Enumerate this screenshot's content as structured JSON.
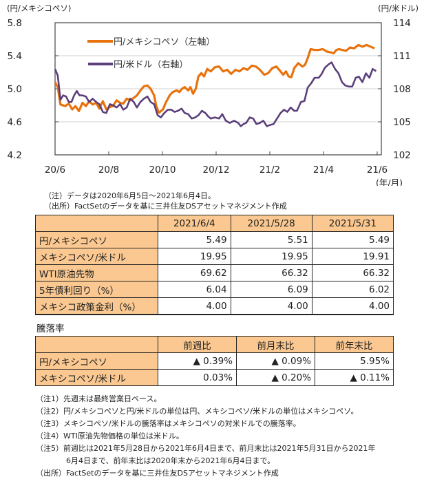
{
  "chart_data": {
    "type": "line",
    "left_unit_label": "(円/メキシコペソ)",
    "right_unit_label": "(円/米ドル)",
    "x_unit_label": "(年/月)",
    "left_ylim": [
      4.2,
      5.8
    ],
    "left_yticks": [
      "5.8",
      "5.4",
      "5.0",
      "4.6",
      "4.2"
    ],
    "right_ylim": [
      102,
      114
    ],
    "right_yticks": [
      "114",
      "111",
      "108",
      "105",
      "102"
    ],
    "x_range_months": [
      0,
      12
    ],
    "x_ticks": [
      {
        "label": "20/6",
        "m": 0
      },
      {
        "label": "20/8",
        "m": 2
      },
      {
        "label": "20/10",
        "m": 4
      },
      {
        "label": "20/12",
        "m": 6
      },
      {
        "label": "21/2",
        "m": 8
      },
      {
        "label": "21/4",
        "m": 10
      },
      {
        "label": "21/6",
        "m": 12
      }
    ],
    "grid": "horizontal",
    "legend_position": "top-left",
    "series": [
      {
        "name": "円/メキシコペソ（左軸）",
        "axis": "left",
        "color": "#e8720c",
        "points": [
          [
            0,
            5.08
          ],
          [
            0.1,
            5.02
          ],
          [
            0.2,
            4.81
          ],
          [
            0.38,
            4.79
          ],
          [
            0.51,
            4.82
          ],
          [
            0.64,
            4.75
          ],
          [
            0.76,
            4.79
          ],
          [
            0.89,
            4.73
          ],
          [
            1.02,
            4.83
          ],
          [
            1.15,
            4.79
          ],
          [
            1.27,
            4.85
          ],
          [
            1.4,
            4.81
          ],
          [
            1.53,
            4.83
          ],
          [
            1.65,
            4.76
          ],
          [
            1.78,
            4.85
          ],
          [
            1.91,
            4.75
          ],
          [
            2.04,
            4.78
          ],
          [
            2.16,
            4.79
          ],
          [
            2.29,
            4.86
          ],
          [
            2.42,
            4.83
          ],
          [
            2.54,
            4.82
          ],
          [
            2.67,
            4.88
          ],
          [
            2.8,
            4.86
          ],
          [
            2.93,
            4.89
          ],
          [
            3.05,
            4.92
          ],
          [
            3.18,
            4.98
          ],
          [
            3.31,
            5.03
          ],
          [
            3.44,
            5.04
          ],
          [
            3.56,
            5.0
          ],
          [
            3.69,
            4.92
          ],
          [
            3.77,
            4.79
          ],
          [
            3.87,
            4.71
          ],
          [
            4.02,
            4.75
          ],
          [
            4.12,
            4.83
          ],
          [
            4.27,
            4.92
          ],
          [
            4.38,
            4.96
          ],
          [
            4.53,
            4.98
          ],
          [
            4.63,
            4.96
          ],
          [
            4.73,
            5.0
          ],
          [
            4.83,
            5.02
          ],
          [
            4.96,
            4.98
          ],
          [
            5.04,
            5.02
          ],
          [
            5.14,
            4.94
          ],
          [
            5.24,
            5.0
          ],
          [
            5.34,
            5.15
          ],
          [
            5.45,
            5.19
          ],
          [
            5.55,
            5.15
          ],
          [
            5.67,
            5.24
          ],
          [
            5.8,
            5.21
          ],
          [
            5.95,
            5.26
          ],
          [
            6.11,
            5.27
          ],
          [
            6.26,
            5.21
          ],
          [
            6.41,
            5.23
          ],
          [
            6.56,
            5.18
          ],
          [
            6.72,
            5.23
          ],
          [
            6.87,
            5.21
          ],
          [
            7.02,
            5.25
          ],
          [
            7.17,
            5.23
          ],
          [
            7.33,
            5.28
          ],
          [
            7.48,
            5.27
          ],
          [
            7.63,
            5.23
          ],
          [
            7.79,
            5.17
          ],
          [
            7.94,
            5.19
          ],
          [
            8.09,
            5.25
          ],
          [
            8.24,
            5.27
          ],
          [
            8.4,
            5.21
          ],
          [
            8.5,
            5.17
          ],
          [
            8.6,
            5.21
          ],
          [
            8.7,
            5.15
          ],
          [
            8.8,
            5.14
          ],
          [
            8.91,
            5.25
          ],
          [
            9.06,
            5.31
          ],
          [
            9.21,
            5.27
          ],
          [
            9.31,
            5.29
          ],
          [
            9.41,
            5.37
          ],
          [
            9.52,
            5.48
          ],
          [
            9.67,
            5.47
          ],
          [
            9.82,
            5.47
          ],
          [
            9.97,
            5.48
          ],
          [
            10.13,
            5.45
          ],
          [
            10.28,
            5.44
          ],
          [
            10.38,
            5.43
          ],
          [
            10.48,
            5.47
          ],
          [
            10.58,
            5.48
          ],
          [
            10.69,
            5.47
          ],
          [
            10.84,
            5.46
          ],
          [
            10.99,
            5.5
          ],
          [
            11.14,
            5.49
          ],
          [
            11.3,
            5.53
          ],
          [
            11.45,
            5.51
          ],
          [
            11.6,
            5.53
          ],
          [
            11.75,
            5.51
          ],
          [
            11.9,
            5.49
          ]
        ]
      },
      {
        "name": "円/米ドル（右軸）",
        "axis": "right",
        "color": "#5b3f7a",
        "points": [
          [
            0,
            109.8
          ],
          [
            0.1,
            109.2
          ],
          [
            0.2,
            107.0
          ],
          [
            0.3,
            107.4
          ],
          [
            0.41,
            107.3
          ],
          [
            0.51,
            106.8
          ],
          [
            0.61,
            106.8
          ],
          [
            0.71,
            107.4
          ],
          [
            0.81,
            107.8
          ],
          [
            0.91,
            107.4
          ],
          [
            1.02,
            107.4
          ],
          [
            1.15,
            107.3
          ],
          [
            1.27,
            106.8
          ],
          [
            1.4,
            107.1
          ],
          [
            1.53,
            106.8
          ],
          [
            1.65,
            106.6
          ],
          [
            1.78,
            105.9
          ],
          [
            1.91,
            105.8
          ],
          [
            2.04,
            106.6
          ],
          [
            2.16,
            106.5
          ],
          [
            2.29,
            106.3
          ],
          [
            2.42,
            106.6
          ],
          [
            2.54,
            106.1
          ],
          [
            2.67,
            106.3
          ],
          [
            2.8,
            107.1
          ],
          [
            2.93,
            106.8
          ],
          [
            3.05,
            106.3
          ],
          [
            3.18,
            106.8
          ],
          [
            3.31,
            107.1
          ],
          [
            3.44,
            107.3
          ],
          [
            3.56,
            106.8
          ],
          [
            3.69,
            106.6
          ],
          [
            3.82,
            105.6
          ],
          [
            3.94,
            105.4
          ],
          [
            4.07,
            105.8
          ],
          [
            4.2,
            106.1
          ],
          [
            4.33,
            106.1
          ],
          [
            4.45,
            105.9
          ],
          [
            4.58,
            106.0
          ],
          [
            4.71,
            106.2
          ],
          [
            4.83,
            105.8
          ],
          [
            4.96,
            105.7
          ],
          [
            5.09,
            105.3
          ],
          [
            5.22,
            105.4
          ],
          [
            5.34,
            105.6
          ],
          [
            5.47,
            106.0
          ],
          [
            5.6,
            105.8
          ],
          [
            5.7,
            105.5
          ],
          [
            5.8,
            105.3
          ],
          [
            5.95,
            105.4
          ],
          [
            6.11,
            105.3
          ],
          [
            6.23,
            105.7
          ],
          [
            6.36,
            105.1
          ],
          [
            6.51,
            104.9
          ],
          [
            6.67,
            105.1
          ],
          [
            6.82,
            104.9
          ],
          [
            6.92,
            104.6
          ],
          [
            7.02,
            104.8
          ],
          [
            7.12,
            104.9
          ],
          [
            7.25,
            105.4
          ],
          [
            7.38,
            105.3
          ],
          [
            7.5,
            104.8
          ],
          [
            7.63,
            104.9
          ],
          [
            7.76,
            105.1
          ],
          [
            7.89,
            104.6
          ],
          [
            7.99,
            104.7
          ],
          [
            8.14,
            104.8
          ],
          [
            8.27,
            105.3
          ],
          [
            8.4,
            105.8
          ],
          [
            8.53,
            106.1
          ],
          [
            8.65,
            105.9
          ],
          [
            8.78,
            106.3
          ],
          [
            8.91,
            106.0
          ],
          [
            9.01,
            106.0
          ],
          [
            9.16,
            106.8
          ],
          [
            9.29,
            106.9
          ],
          [
            9.41,
            108.1
          ],
          [
            9.54,
            108.5
          ],
          [
            9.67,
            109.0
          ],
          [
            9.82,
            109.0
          ],
          [
            9.92,
            109.3
          ],
          [
            10.05,
            109.9
          ],
          [
            10.18,
            110.2
          ],
          [
            10.3,
            110.4
          ],
          [
            10.43,
            109.8
          ],
          [
            10.56,
            109.4
          ],
          [
            10.69,
            108.6
          ],
          [
            10.81,
            108.3
          ],
          [
            10.94,
            108.2
          ],
          [
            11.07,
            108.2
          ],
          [
            11.2,
            109.0
          ],
          [
            11.32,
            109.1
          ],
          [
            11.45,
            108.6
          ],
          [
            11.58,
            109.4
          ],
          [
            11.71,
            109.0
          ],
          [
            11.83,
            109.8
          ],
          [
            11.96,
            109.6
          ]
        ]
      }
    ]
  },
  "chart_notes": {
    "note": "（注）データは2020年6月5日～2021年6月4日。",
    "source": "（出所）FactSetのデータを基に三井住友DSアセットマネジメント作成"
  },
  "table1": {
    "headers": [
      "",
      "2021/6/4",
      "2021/5/28",
      "2021/5/31"
    ],
    "rows": [
      {
        "label": "円/メキシコペソ",
        "values": [
          "5.49",
          "5.51",
          "5.49"
        ]
      },
      {
        "label": "メキシコペソ/米ドル",
        "values": [
          "19.95",
          "19.95",
          "19.91"
        ]
      },
      {
        "label": "WTI原油先物",
        "values": [
          "69.62",
          "66.32",
          "66.32"
        ]
      },
      {
        "label": "5年債利回り（%）",
        "values": [
          "6.04",
          "6.09",
          "6.02"
        ]
      },
      {
        "label": "メキシコ政策金利（%）",
        "values": [
          "4.00",
          "4.00",
          "4.00"
        ]
      }
    ]
  },
  "table2": {
    "title": "騰落率",
    "headers": [
      "",
      "前週比",
      "前月末比",
      "前年末比"
    ],
    "rows": [
      {
        "label": "円/メキシコペソ",
        "values": [
          "▲ 0.39%",
          "▲ 0.09%",
          "5.95%"
        ]
      },
      {
        "label": "メキシコペソ/米ドル",
        "values": [
          "0.03%",
          "▲ 0.20%",
          "▲ 0.11%"
        ]
      }
    ]
  },
  "footnotes": [
    "（注1）先週末は最終営業日ベース。",
    "（注2）円/メキシコペソと円/米ドルの単位は円、メキシコペソ/米ドルの単位はメキシコペソ。",
    "（注3）メキシコペソ/米ドルの騰落率はメキシコペソの対米ドルでの騰落率。",
    "（注4）WTI原油先物価格の単位は米ドル。",
    "（注5）前週比は2021年5月28日から2021年6月4日まで、前月末比は2021年5月31日から2021年",
    "　　　　6月4日まで、前年末比は2020年末から2021年6月4日まで。",
    "（出所）FactSetのデータを基に三井住友DSアセットマネジメント作成"
  ]
}
